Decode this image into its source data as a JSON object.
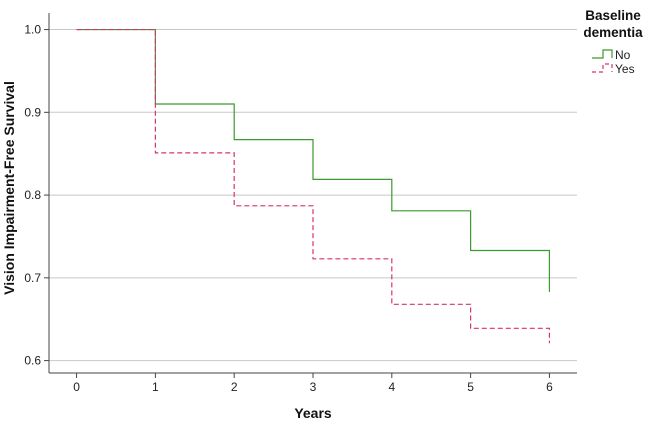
{
  "chart_data": {
    "type": "line",
    "subtype": "step",
    "xlabel": "Years",
    "ylabel": "Vision Impairment-Free Survival",
    "xlim": [
      -0.35,
      6.35
    ],
    "ylim": [
      0.585,
      1.02
    ],
    "xticks": [
      "0",
      "1",
      "2",
      "3",
      "4",
      "5",
      "6"
    ],
    "yticks": [
      "0.6",
      "0.7",
      "0.8",
      "0.9",
      "1.0"
    ],
    "grid": "horizontal",
    "legend": {
      "title_line1": "Baseline",
      "title_line2": "dementia",
      "position": "top-right"
    },
    "series": [
      {
        "name": "No",
        "color": "#3a9a2f",
        "dashed": false,
        "x": [
          0,
          1,
          2,
          3,
          4,
          5,
          6
        ],
        "y": [
          1.0,
          0.91,
          0.867,
          0.819,
          0.781,
          0.733,
          0.683
        ]
      },
      {
        "name": "Yes",
        "color": "#d6336c",
        "dashed": true,
        "x": [
          0,
          1,
          2,
          3,
          4,
          5,
          6
        ],
        "y": [
          1.0,
          0.851,
          0.787,
          0.723,
          0.668,
          0.639,
          0.621
        ]
      }
    ]
  }
}
